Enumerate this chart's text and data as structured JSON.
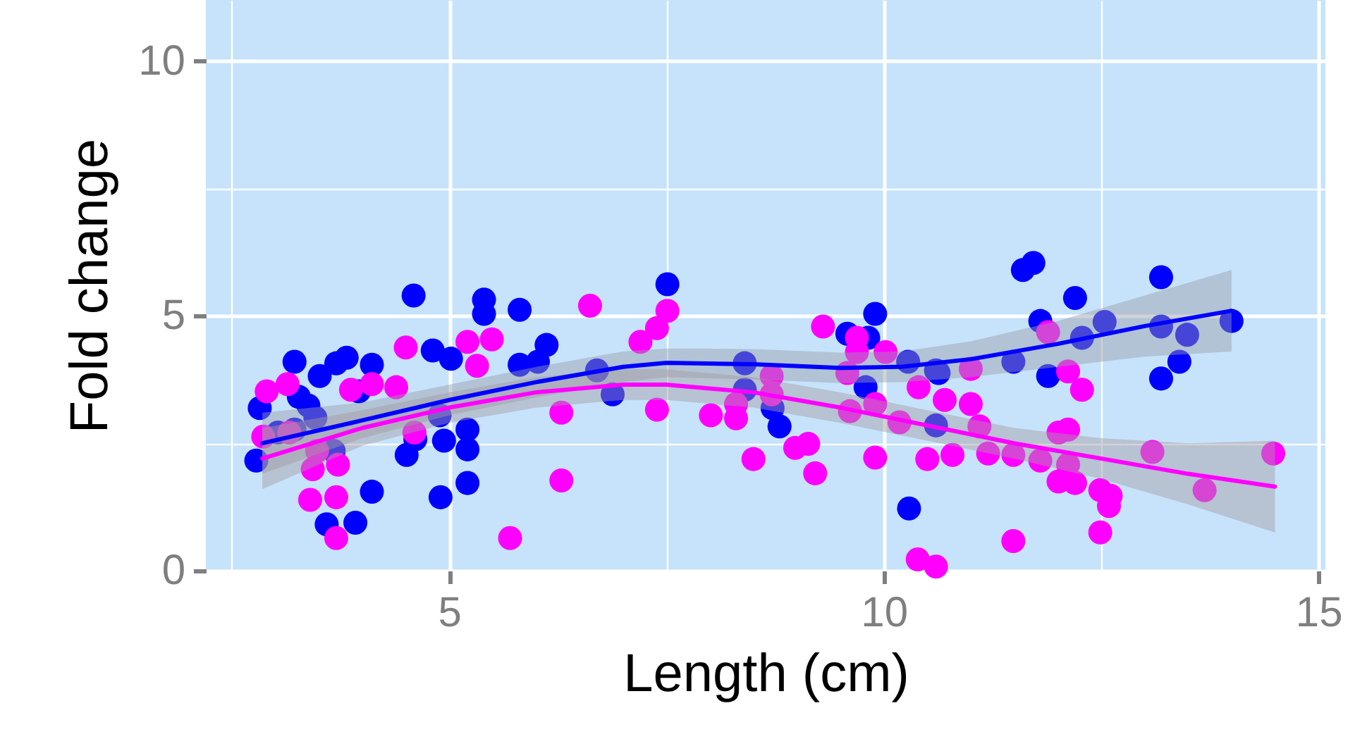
{
  "chart_data": {
    "type": "scatter",
    "xlabel": "Length (cm)",
    "ylabel": "Fold change",
    "xlim": [
      2.2,
      15.08
    ],
    "ylim": [
      0,
      11.2
    ],
    "xticks": [
      {
        "value": 2.5,
        "label": null
      },
      5,
      {
        "value": 7.5,
        "label": null
      },
      10,
      {
        "value": 12.5,
        "label": null
      },
      15
    ],
    "yticks": [
      0,
      {
        "value": 2.5,
        "label": null
      },
      5,
      {
        "value": 7.5,
        "label": null
      },
      10
    ],
    "grid": true,
    "marker": "circle",
    "series": [
      {
        "color": "#0000ff",
        "x": [
          4.59,
          5.4,
          5.4,
          5.81,
          3.22,
          3.51,
          3.7,
          3.82,
          4.11,
          4.81,
          5.02,
          6.12,
          5.81,
          6.02,
          2.82,
          3.27,
          3.38,
          3.46,
          3.03,
          2.78,
          3.96,
          4.89,
          5.21,
          4.94,
          5.21,
          4.51,
          4.61,
          3.67,
          4.11,
          4.9,
          5.21,
          3.59,
          3.92,
          3.22,
          7.51,
          9.9,
          9.58,
          9.82,
          6.7,
          6.88,
          8.4,
          8.4,
          8.72,
          8.8,
          9.79,
          10.28,
          10.6,
          10.6,
          10.29,
          11.6,
          11.72,
          12.2,
          13.19,
          11.8,
          12.54,
          12.28,
          13.19,
          13.49,
          14.0,
          11.49,
          10.63,
          11.89,
          13.4,
          13.19
        ],
        "values": [
          5.4,
          5.32,
          5.04,
          5.12,
          4.1,
          3.82,
          4.07,
          4.18,
          4.04,
          4.32,
          4.16,
          4.43,
          4.04,
          4.1,
          3.19,
          3.41,
          3.24,
          3.0,
          2.71,
          2.16,
          3.52,
          3.05,
          2.77,
          2.55,
          2.38,
          2.27,
          2.58,
          2.35,
          1.55,
          1.44,
          1.72,
          0.91,
          0.94,
          2.77,
          5.62,
          5.04,
          4.65,
          4.57,
          3.93,
          3.46,
          4.07,
          3.55,
          3.19,
          2.83,
          3.6,
          4.1,
          3.93,
          2.85,
          1.22,
          5.9,
          6.04,
          5.35,
          5.76,
          4.9,
          4.88,
          4.57,
          4.79,
          4.63,
          4.9,
          4.1,
          3.88,
          3.82,
          4.1,
          3.77
        ]
      },
      {
        "color": "#ff00ff",
        "x": [
          6.62,
          4.5,
          5.21,
          5.49,
          5.32,
          2.9,
          3.14,
          3.87,
          4.11,
          4.39,
          2.86,
          6.29,
          4.6,
          3.43,
          3.72,
          3.4,
          3.7,
          3.7,
          5.7,
          6.29,
          3.16,
          3.48,
          7.51,
          7.39,
          7.2,
          9.3,
          9.69,
          9.69,
          10.02,
          9.58,
          8.71,
          7.39,
          8.01,
          8.3,
          8.3,
          8.71,
          9.61,
          9.9,
          10.18,
          10.4,
          10.7,
          8.5,
          8.98,
          9.13,
          9.21,
          9.9,
          10.5,
          10.39,
          10.6,
          11.89,
          11.0,
          12.12,
          12.28,
          11.0,
          11.1,
          12.01,
          12.12,
          10.79,
          11.2,
          11.49,
          11.8,
          12.12,
          12.01,
          12.2,
          12.49,
          12.61,
          12.59,
          12.49,
          11.49,
          13.09,
          13.69,
          14.48
        ],
        "values": [
          5.2,
          4.38,
          4.49,
          4.54,
          4.02,
          3.52,
          3.66,
          3.55,
          3.66,
          3.6,
          2.63,
          3.1,
          2.71,
          1.99,
          2.08,
          1.39,
          1.44,
          0.64,
          0.64,
          1.77,
          2.71,
          2.35,
          5.1,
          4.76,
          4.49,
          4.79,
          4.57,
          4.29,
          4.29,
          3.88,
          3.82,
          3.16,
          3.05,
          3.27,
          2.99,
          3.46,
          3.13,
          3.27,
          2.91,
          3.6,
          3.35,
          2.19,
          2.41,
          2.49,
          1.91,
          2.22,
          2.19,
          0.22,
          0.08,
          4.68,
          3.96,
          3.91,
          3.55,
          3.27,
          2.83,
          2.71,
          2.77,
          2.27,
          2.3,
          2.27,
          2.16,
          2.08,
          1.75,
          1.72,
          1.58,
          1.47,
          1.27,
          0.75,
          0.58,
          2.33,
          1.58,
          2.3
        ]
      },
      {
        "type": "line",
        "marker": "none",
        "color": "#0000ff",
        "x": [
          2.85,
          4,
          5,
          6,
          7,
          7.5,
          8.5,
          9.5,
          10.2,
          11,
          12,
          13,
          14
        ],
        "values": [
          2.5,
          2.95,
          3.35,
          3.7,
          4.0,
          4.08,
          4.05,
          3.98,
          4.0,
          4.15,
          4.45,
          4.8,
          5.1
        ],
        "lower": [
          1.9,
          2.6,
          3.05,
          3.4,
          3.7,
          3.8,
          3.75,
          3.68,
          3.7,
          3.8,
          4.0,
          4.2,
          4.3
        ],
        "upper": [
          3.1,
          3.3,
          3.65,
          4.0,
          4.3,
          4.36,
          4.35,
          4.28,
          4.3,
          4.5,
          4.9,
          5.4,
          5.9
        ]
      },
      {
        "type": "line",
        "marker": "none",
        "color": "#ff00ff",
        "x": [
          2.85,
          4,
          5,
          6,
          7,
          7.5,
          8.5,
          9.5,
          10.5,
          11.5,
          12.5,
          13.5,
          14.5
        ],
        "values": [
          2.2,
          2.8,
          3.2,
          3.5,
          3.65,
          3.65,
          3.5,
          3.2,
          2.85,
          2.5,
          2.2,
          1.9,
          1.65
        ],
        "lower": [
          1.6,
          2.45,
          2.9,
          3.2,
          3.35,
          3.35,
          3.2,
          2.9,
          2.55,
          2.2,
          1.8,
          1.3,
          0.75
        ],
        "upper": [
          2.8,
          3.15,
          3.5,
          3.8,
          3.95,
          3.95,
          3.8,
          3.5,
          3.15,
          2.8,
          2.6,
          2.5,
          2.55
        ]
      }
    ]
  }
}
